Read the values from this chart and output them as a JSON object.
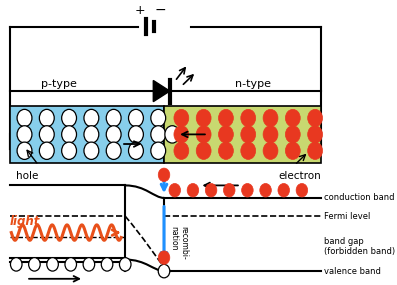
{
  "bg_color": "#ffffff",
  "p_type_color": "#87ceeb",
  "n_type_color": "#c8d870",
  "hole_color": "white",
  "electron_color": "#e83820",
  "labels": {
    "p_type": "p-type",
    "n_type": "n-type",
    "hole": "hole",
    "electron": "electron",
    "light": "light",
    "conduction_band": "conduction band",
    "fermi_level": "Fermi level",
    "band_gap": "band gap",
    "forbidden_band": "(forbidden band)",
    "valence_band": "valence band",
    "recombination": "recombi-\nnation"
  }
}
